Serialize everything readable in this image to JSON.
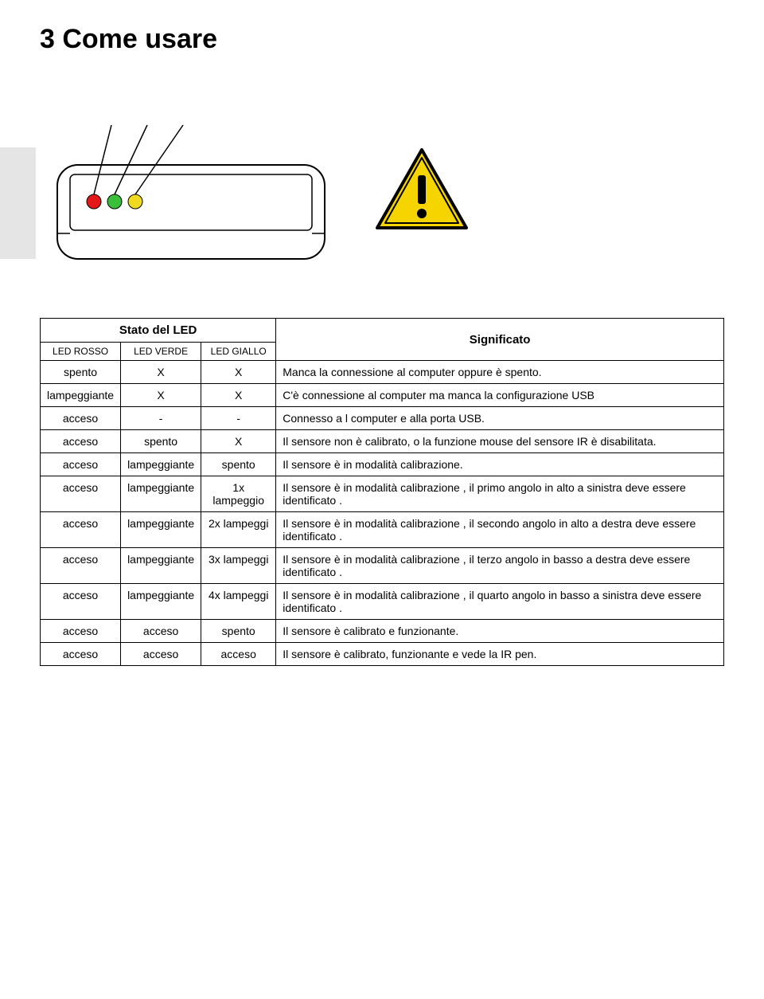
{
  "heading": "3 Come usare",
  "diagram": {
    "led_colors": {
      "red": "#e31818",
      "green": "#3abf3a",
      "yellow": "#f0da20"
    },
    "device_stroke": "#000000",
    "device_fill": "#ffffff",
    "warning": {
      "border": "#000000",
      "fill": "#f5d400",
      "mark": "#000000"
    }
  },
  "table": {
    "header_state": "Stato del LED",
    "header_sig": "Significato",
    "sub_headers": [
      "LED ROSSO",
      "LED VERDE",
      "LED GIALLO"
    ],
    "rows": [
      {
        "r": "spento",
        "v": "X",
        "g": "X",
        "sig": "Manca la connessione al computer oppure è spento."
      },
      {
        "r": "lampeggiante",
        "v": "X",
        "g": "X",
        "sig": "C'è connessione al computer ma manca la configurazione USB"
      },
      {
        "r": "acceso",
        "v": "-",
        "g": "-",
        "sig": "Connesso a l computer e alla porta USB."
      },
      {
        "r": "acceso",
        "v": "spento",
        "g": "X",
        "sig": "Il sensore non è calibrato, o la funzione mouse del sensore IR è disabilitata."
      },
      {
        "r": "acceso",
        "v": "lampeggiante",
        "g": "spento",
        "sig": "Il sensore è in modalità calibrazione."
      },
      {
        "r": "acceso",
        "v": "lampeggiante",
        "g": "1x lampeggio",
        "sig": "Il sensore è in modalità calibrazione , il primo angolo in alto a sinistra deve essere identificato ."
      },
      {
        "r": "acceso",
        "v": "lampeggiante",
        "g": "2x lampeggi",
        "sig": "Il sensore è in modalità calibrazione , il secondo angolo in alto a destra deve essere identificato ."
      },
      {
        "r": "acceso",
        "v": "lampeggiante",
        "g": "3x lampeggi",
        "sig": "Il sensore è in modalità calibrazione , il terzo angolo in basso a destra deve essere identificato ."
      },
      {
        "r": "acceso",
        "v": "lampeggiante",
        "g": "4x lampeggi",
        "sig": "Il sensore è in modalità calibrazione , il quarto angolo in basso a sinistra deve essere identificato ."
      },
      {
        "r": "acceso",
        "v": "acceso",
        "g": "spento",
        "sig": "Il sensore è calibrato e funzionante."
      },
      {
        "r": "acceso",
        "v": "acceso",
        "g": "acceso",
        "sig": "Il sensore è calibrato, funzionante e vede la IR pen."
      }
    ]
  }
}
